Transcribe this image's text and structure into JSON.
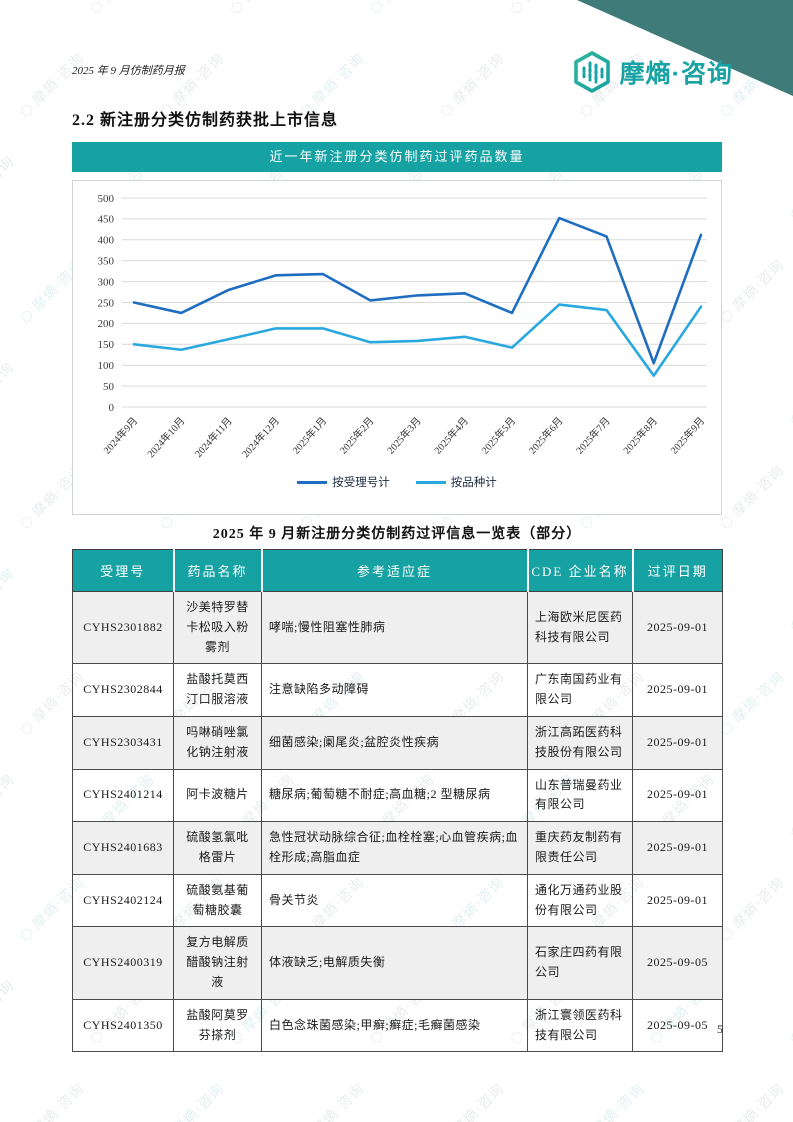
{
  "page": {
    "header_left": "2025 年 9 月仿制药月报",
    "section_title": "2.2 新注册分类仿制药获批上市信息",
    "page_number": "5",
    "watermark_text": "摩熵·咨询",
    "brand": {
      "name": "摩熵·咨询",
      "color": "#17a2a3",
      "triangle_color": "#3f7b79",
      "icon": "hexagon-bars-logo-icon"
    }
  },
  "chart_data": {
    "type": "line",
    "title": "近一年新注册分类仿制药过评药品数量",
    "categories": [
      "2024年9月",
      "2024年10月",
      "2024年11月",
      "2024年12月",
      "2025年1月",
      "2025年2月",
      "2025年3月",
      "2025年4月",
      "2025年5月",
      "2025年6月",
      "2025年7月",
      "2025年8月",
      "2025年9月"
    ],
    "series": [
      {
        "name": "按受理号计",
        "color": "#1f6dc1",
        "values": [
          250,
          225,
          280,
          315,
          318,
          255,
          267,
          272,
          225,
          452,
          408,
          105,
          412
        ]
      },
      {
        "name": "按品种计",
        "color": "#29a8df",
        "values": [
          150,
          137,
          162,
          188,
          188,
          155,
          158,
          168,
          142,
          245,
          232,
          75,
          240
        ]
      }
    ],
    "xlabel": "",
    "ylabel": "",
    "ylim": [
      0,
      500
    ],
    "ytick_step": 50,
    "grid": true,
    "legend_position": "bottom"
  },
  "table": {
    "title": "2025 年 9 月新注册分类仿制药过评信息一览表（部分）",
    "headers": [
      "受理号",
      "药品名称",
      "参考适应症",
      "CDE 企业名称",
      "过评日期"
    ],
    "rows": [
      [
        "CYHS2301882",
        "沙美特罗替卡松吸入粉雾剂",
        "哮喘;慢性阻塞性肺病",
        "上海欧米尼医药科技有限公司",
        "2025-09-01"
      ],
      [
        "CYHS2302844",
        "盐酸托莫西汀口服溶液",
        "注意缺陷多动障碍",
        "广东南国药业有限公司",
        "2025-09-01"
      ],
      [
        "CYHS2303431",
        "吗啉硝唑氯化钠注射液",
        "细菌感染;阑尾炎;盆腔炎性疾病",
        "浙江高跖医药科技股份有限公司",
        "2025-09-01"
      ],
      [
        "CYHS2401214",
        "阿卡波糖片",
        "糖尿病;葡萄糖不耐症;高血糖;2 型糖尿病",
        "山东普瑞曼药业有限公司",
        "2025-09-01"
      ],
      [
        "CYHS2401683",
        "硫酸氢氯吡格雷片",
        "急性冠状动脉综合征;血栓栓塞;心血管疾病;血栓形成;高脂血症",
        "重庆药友制药有限责任公司",
        "2025-09-01"
      ],
      [
        "CYHS2402124",
        "硫酸氨基葡萄糖胶囊",
        "骨关节炎",
        "通化万通药业股份有限公司",
        "2025-09-01"
      ],
      [
        "CYHS2400319",
        "复方电解质醋酸钠注射液",
        "体液缺乏;电解质失衡",
        "石家庄四药有限公司",
        "2025-09-05"
      ],
      [
        "CYHS2401350",
        "盐酸阿莫罗芬搽剂",
        "白色念珠菌感染;甲癣;癣症;毛癣菌感染",
        "浙江寰领医药科技有限公司",
        "2025-09-05"
      ]
    ]
  }
}
